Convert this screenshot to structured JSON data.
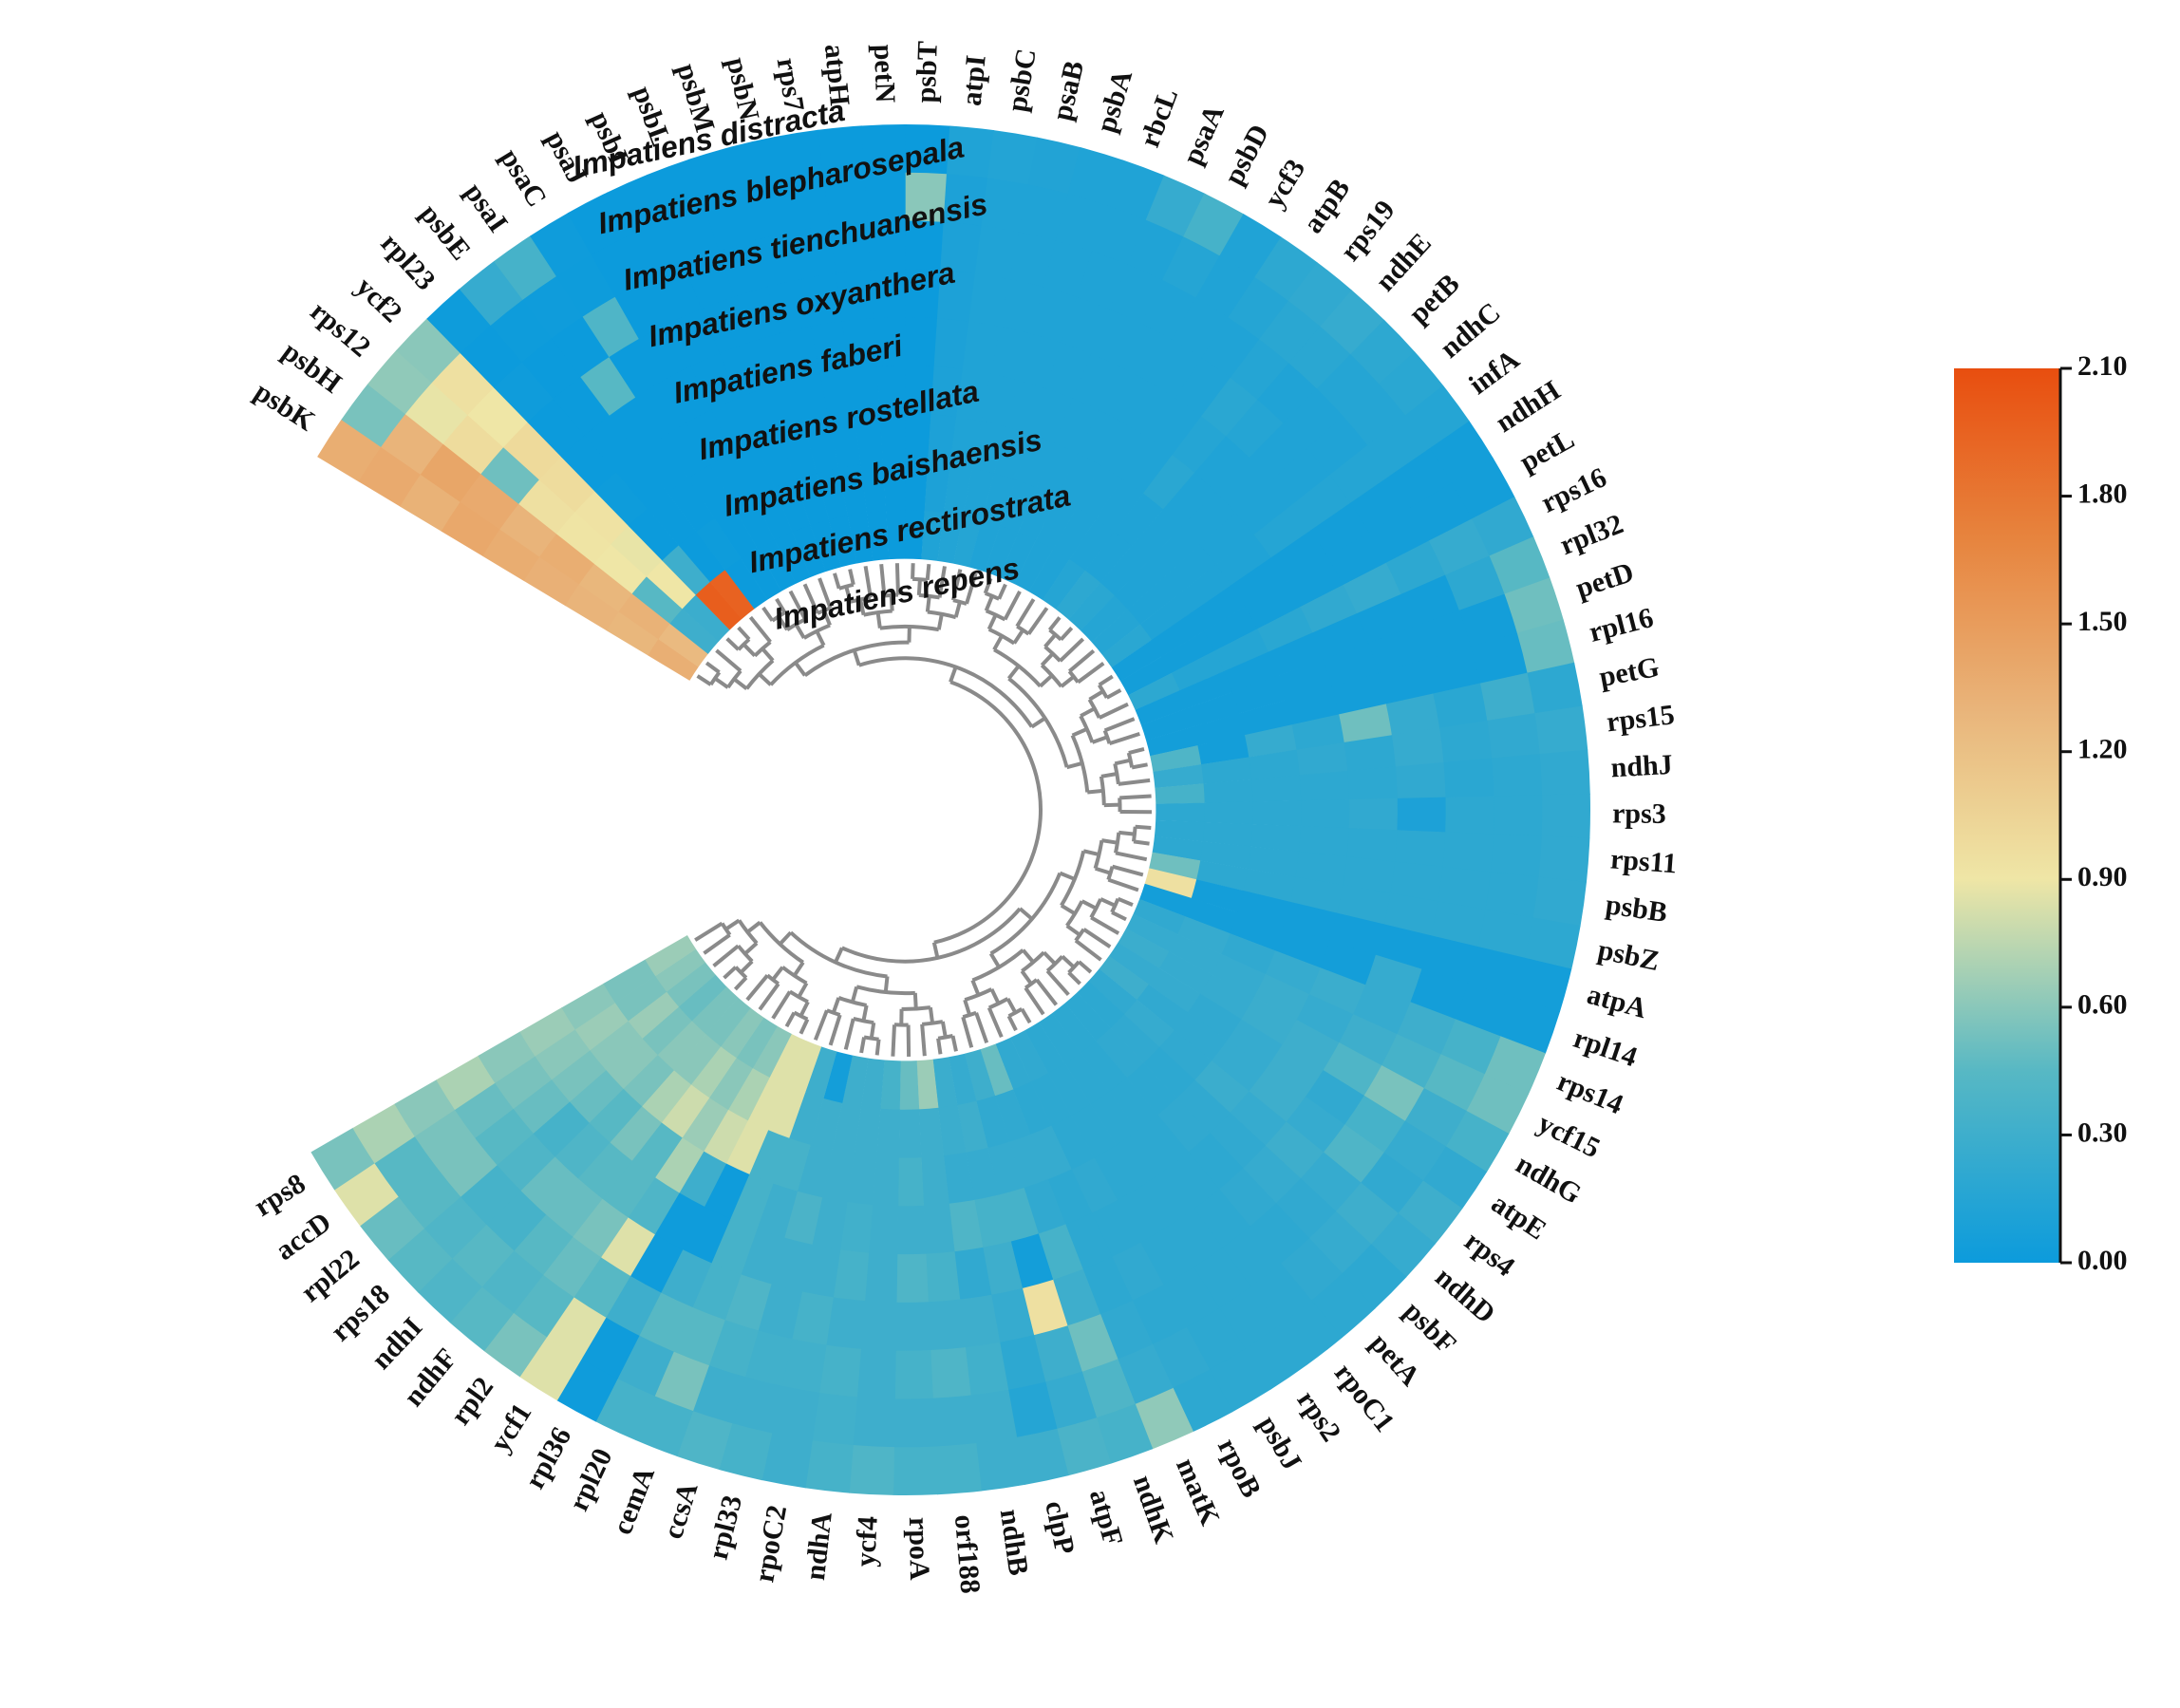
{
  "chart_data": {
    "type": "heatmap",
    "subtype": "circular heatmap with dendrogram",
    "title": "",
    "genes": [
      "psbK",
      "psbH",
      "rps12",
      "ycf2",
      "rpl23",
      "psbE",
      "psaI",
      "psaC",
      "psaJ",
      "psbI",
      "psbL",
      "psbM",
      "psbN",
      "rps7",
      "atpH",
      "petN",
      "psbT",
      "atpI",
      "psbC",
      "psaB",
      "psbA",
      "rbcL",
      "psaA",
      "psbD",
      "ycf3",
      "atpB",
      "rps19",
      "ndhE",
      "petB",
      "ndhC",
      "infA",
      "ndhH",
      "petL",
      "rps16",
      "rpl32",
      "petD",
      "rpl16",
      "petG",
      "rps15",
      "ndhJ",
      "rps3",
      "rps11",
      "psbB",
      "psbZ",
      "atpA",
      "rpl14",
      "rps14",
      "ycf15",
      "ndhG",
      "atpE",
      "rps4",
      "ndhD",
      "psbF",
      "petA",
      "rpoC1",
      "rps2",
      "psbJ",
      "rpoB",
      "matK",
      "ndhK",
      "atpF",
      "clpP",
      "ndhB",
      "orf188",
      "rpoA",
      "ycf4",
      "ndhA",
      "rpoC2",
      "rpl33",
      "ccsA",
      "cemA",
      "rpl20",
      "rpl36",
      "ycf1",
      "rpl2",
      "ndhF",
      "ndhI",
      "rps18",
      "rpl22",
      "accD",
      "rps8"
    ],
    "species": [
      "Impatiens distracta",
      "Impatiens blepharosepala",
      "Impatiens tienchuanensis",
      "Impatiens oxyanthera",
      "Impatiens faberi",
      "Impatiens rostellata",
      "Impatiens baishaensis",
      "Impatiens rectirostrata",
      "Impatiens repens"
    ],
    "values": [
      [
        1.35,
        1.38,
        1.32,
        1.4,
        1.36,
        1.33,
        1.3,
        1.28,
        1.34
      ],
      [
        0.55,
        1.3,
        1.42,
        1.38,
        1.3,
        1.35,
        1.28,
        1.32,
        1.25
      ],
      [
        0.62,
        0.88,
        0.98,
        0.52,
        0.95,
        0.92,
        0.9,
        0.45,
        0.3
      ],
      [
        0.6,
        0.95,
        0.9,
        1.0,
        0.98,
        0.93,
        0.88,
        0.9,
        0.28
      ],
      [
        0.01,
        0.0,
        0.02,
        0.0,
        0.0,
        0.01,
        0.0,
        0.3,
        1.98
      ],
      [
        0.25,
        0.01,
        0.0,
        0.0,
        0.0,
        0.0,
        0.0,
        0.0,
        1.95
      ],
      [
        0.35,
        0.02,
        0.0,
        0.45,
        0.0,
        0.0,
        0.0,
        0.01,
        0.0
      ],
      [
        0.02,
        0.01,
        0.4,
        0.0,
        0.0,
        0.0,
        0.0,
        0.0,
        0.0
      ],
      [
        0.0,
        0.0,
        0.0,
        0.0,
        0.0,
        0.0,
        0.0,
        0.0,
        0.0
      ],
      [
        0.0,
        0.0,
        0.0,
        0.0,
        0.0,
        0.0,
        0.0,
        0.0,
        0.0
      ],
      [
        0.0,
        0.0,
        0.0,
        0.0,
        0.0,
        0.0,
        0.0,
        0.0,
        0.0
      ],
      [
        0.0,
        0.0,
        0.0,
        0.0,
        0.0,
        0.0,
        0.0,
        0.0,
        0.0
      ],
      [
        0.0,
        0.0,
        0.0,
        0.0,
        0.0,
        0.0,
        0.0,
        0.0,
        0.0
      ],
      [
        0.0,
        0.0,
        0.0,
        0.0,
        0.0,
        0.0,
        0.0,
        0.0,
        0.0
      ],
      [
        0.0,
        0.0,
        0.0,
        0.0,
        0.0,
        0.0,
        0.0,
        0.0,
        0.0
      ],
      [
        0.0,
        0.0,
        0.0,
        0.0,
        0.0,
        0.0,
        0.0,
        0.0,
        0.0
      ],
      [
        0.0,
        0.6,
        0.0,
        0.0,
        0.0,
        0.0,
        0.0,
        0.0,
        0.0
      ],
      [
        0.12,
        0.1,
        0.1,
        0.1,
        0.1,
        0.1,
        0.1,
        0.1,
        0.12
      ],
      [
        0.14,
        0.12,
        0.12,
        0.12,
        0.12,
        0.12,
        0.12,
        0.12,
        0.14
      ],
      [
        0.13,
        0.12,
        0.12,
        0.12,
        0.12,
        0.12,
        0.12,
        0.12,
        0.15
      ],
      [
        0.12,
        0.12,
        0.12,
        0.12,
        0.12,
        0.12,
        0.12,
        0.12,
        0.12
      ],
      [
        0.12,
        0.12,
        0.12,
        0.12,
        0.12,
        0.12,
        0.12,
        0.12,
        0.12
      ],
      [
        0.25,
        0.12,
        0.12,
        0.12,
        0.12,
        0.12,
        0.12,
        0.12,
        0.12
      ],
      [
        0.35,
        0.15,
        0.12,
        0.12,
        0.12,
        0.12,
        0.12,
        0.12,
        0.12
      ],
      [
        0.12,
        0.12,
        0.12,
        0.12,
        0.12,
        0.12,
        0.12,
        0.12,
        0.12
      ],
      [
        0.2,
        0.15,
        0.12,
        0.12,
        0.12,
        0.12,
        0.12,
        0.12,
        0.15
      ],
      [
        0.22,
        0.18,
        0.15,
        0.18,
        0.15,
        0.18,
        0.12,
        0.12,
        0.2
      ],
      [
        0.25,
        0.18,
        0.12,
        0.15,
        0.12,
        0.12,
        0.12,
        0.12,
        0.18
      ],
      [
        0.2,
        0.15,
        0.12,
        0.12,
        0.12,
        0.12,
        0.12,
        0.12,
        0.15
      ],
      [
        0.18,
        0.15,
        0.12,
        0.12,
        0.12,
        0.12,
        0.12,
        0.12,
        0.15
      ],
      [
        0.15,
        0.15,
        0.15,
        0.15,
        0.15,
        0.12,
        0.12,
        0.12,
        0.18
      ],
      [
        0.05,
        0.05,
        0.05,
        0.05,
        0.05,
        0.05,
        0.05,
        0.05,
        0.05
      ],
      [
        0.05,
        0.05,
        0.05,
        0.05,
        0.05,
        0.05,
        0.05,
        0.05,
        0.05
      ],
      [
        0.22,
        0.25,
        0.2,
        0.25,
        0.22,
        0.18,
        0.15,
        0.15,
        0.2
      ],
      [
        0.45,
        0.2,
        0.05,
        0.05,
        0.05,
        0.05,
        0.05,
        0.05,
        0.05
      ],
      [
        0.52,
        0.05,
        0.05,
        0.05,
        0.05,
        0.05,
        0.05,
        0.05,
        0.05
      ],
      [
        0.5,
        0.05,
        0.05,
        0.05,
        0.05,
        0.05,
        0.05,
        0.05,
        0.05
      ],
      [
        0.2,
        0.3,
        0.18,
        0.25,
        0.52,
        0.2,
        0.25,
        0.05,
        0.4
      ],
      [
        0.25,
        0.22,
        0.2,
        0.25,
        0.2,
        0.22,
        0.2,
        0.2,
        0.25
      ],
      [
        0.22,
        0.2,
        0.18,
        0.22,
        0.2,
        0.2,
        0.2,
        0.2,
        0.35
      ],
      [
        0.22,
        0.2,
        0.2,
        0.1,
        0.22,
        0.2,
        0.2,
        0.2,
        0.2
      ],
      [
        0.22,
        0.2,
        0.2,
        0.2,
        0.2,
        0.2,
        0.2,
        0.2,
        0.2
      ],
      [
        0.22,
        0.2,
        0.2,
        0.2,
        0.2,
        0.2,
        0.2,
        0.2,
        0.2
      ],
      [
        0.2,
        0.2,
        0.2,
        0.2,
        0.2,
        0.2,
        0.2,
        0.2,
        0.52
      ],
      [
        0.05,
        0.05,
        0.05,
        0.05,
        0.05,
        0.05,
        0.05,
        0.05,
        0.95
      ],
      [
        0.05,
        0.05,
        0.05,
        0.25,
        0.05,
        0.05,
        0.05,
        0.05,
        0.05
      ],
      [
        0.52,
        0.35,
        0.3,
        0.25,
        0.28,
        0.25,
        0.22,
        0.25,
        0.22
      ],
      [
        0.52,
        0.45,
        0.35,
        0.3,
        0.25,
        0.28,
        0.25,
        0.25,
        0.25
      ],
      [
        0.35,
        0.3,
        0.55,
        0.4,
        0.3,
        0.28,
        0.25,
        0.25,
        0.28
      ],
      [
        0.22,
        0.25,
        0.35,
        0.22,
        0.3,
        0.25,
        0.22,
        0.25,
        0.25
      ],
      [
        0.3,
        0.22,
        0.4,
        0.25,
        0.3,
        0.25,
        0.22,
        0.22,
        0.3
      ],
      [
        0.25,
        0.3,
        0.25,
        0.3,
        0.25,
        0.28,
        0.22,
        0.25,
        0.22
      ],
      [
        0.2,
        0.25,
        0.22,
        0.25,
        0.22,
        0.22,
        0.2,
        0.22,
        0.2
      ],
      [
        0.2,
        0.22,
        0.2,
        0.22,
        0.2,
        0.22,
        0.2,
        0.22,
        0.2
      ],
      [
        0.2,
        0.2,
        0.2,
        0.2,
        0.2,
        0.2,
        0.2,
        0.2,
        0.2
      ],
      [
        0.2,
        0.2,
        0.2,
        0.2,
        0.2,
        0.2,
        0.2,
        0.2,
        0.2
      ],
      [
        0.2,
        0.2,
        0.2,
        0.2,
        0.2,
        0.2,
        0.2,
        0.2,
        0.2
      ],
      [
        0.2,
        0.22,
        0.2,
        0.22,
        0.2,
        0.22,
        0.2,
        0.2,
        0.22
      ],
      [
        0.62,
        0.25,
        0.22,
        0.2,
        0.2,
        0.2,
        0.25,
        0.2,
        0.22
      ],
      [
        0.35,
        0.4,
        0.52,
        0.3,
        0.35,
        0.22,
        0.25,
        0.22,
        0.5
      ],
      [
        0.38,
        0.25,
        0.3,
        0.95,
        0.05,
        0.35,
        0.25,
        0.22,
        0.3
      ],
      [
        0.3,
        0.15,
        0.2,
        0.25,
        0.3,
        0.35,
        0.25,
        0.3,
        0.25
      ],
      [
        0.3,
        0.3,
        0.32,
        0.3,
        0.22,
        0.4,
        0.25,
        0.28,
        0.28
      ],
      [
        0.35,
        0.3,
        0.4,
        0.3,
        0.35,
        0.3,
        0.3,
        0.3,
        0.65
      ],
      [
        0.35,
        0.3,
        0.35,
        0.3,
        0.4,
        0.3,
        0.35,
        0.3,
        0.5
      ],
      [
        0.4,
        0.3,
        0.3,
        0.3,
        0.3,
        0.3,
        0.3,
        0.3,
        0.35
      ],
      [
        0.35,
        0.32,
        0.35,
        0.3,
        0.35,
        0.32,
        0.3,
        0.3,
        0.3
      ],
      [
        0.3,
        0.3,
        0.32,
        0.35,
        0.3,
        0.3,
        0.3,
        0.3,
        0.3
      ],
      [
        0.35,
        0.3,
        0.32,
        0.3,
        0.3,
        0.38,
        0.3,
        0.3,
        0.05
      ],
      [
        0.4,
        0.3,
        0.35,
        0.4,
        0.3,
        0.3,
        0.35,
        0.3,
        0.3
      ],
      [
        0.35,
        0.55,
        0.45,
        0.35,
        0.35,
        0.35,
        0.35,
        0.85,
        0.85
      ],
      [
        0.35,
        0.3,
        0.45,
        0.3,
        0.02,
        0.02,
        0.85,
        0.85,
        0.85
      ],
      [
        0.02,
        0.02,
        0.3,
        0.02,
        0.02,
        0.3,
        0.8,
        0.7,
        0.6
      ],
      [
        0.85,
        0.85,
        0.45,
        0.85,
        0.4,
        0.7,
        0.65,
        0.6,
        0.55
      ],
      [
        0.55,
        0.45,
        0.5,
        0.55,
        0.45,
        0.45,
        0.8,
        0.7,
        0.6
      ],
      [
        0.45,
        0.4,
        0.45,
        0.5,
        0.45,
        0.55,
        0.7,
        0.6,
        0.55
      ],
      [
        0.4,
        0.45,
        0.35,
        0.5,
        0.4,
        0.45,
        0.55,
        0.6,
        0.55
      ],
      [
        0.45,
        0.4,
        0.35,
        0.4,
        0.35,
        0.5,
        0.6,
        0.55,
        0.5
      ],
      [
        0.5,
        0.45,
        0.55,
        0.45,
        0.5,
        0.55,
        0.6,
        0.65,
        0.55
      ],
      [
        0.85,
        0.45,
        0.55,
        0.5,
        0.55,
        0.6,
        0.65,
        0.55,
        0.6
      ],
      [
        0.55,
        0.7,
        0.6,
        0.7,
        0.6,
        0.65,
        0.6,
        0.55,
        0.65
      ]
    ],
    "colorbar": {
      "min": 0.0,
      "max": 2.1,
      "ticks": [
        "2.10",
        "1.80",
        "1.50",
        "1.20",
        "0.90",
        "0.60",
        "0.30",
        "0.00"
      ],
      "stops": [
        {
          "v": 0.0,
          "c": "#0C9BDC"
        },
        {
          "v": 0.45,
          "c": "#57B8C4"
        },
        {
          "v": 0.9,
          "c": "#EFE6A6"
        },
        {
          "v": 1.3,
          "c": "#E9B47A"
        },
        {
          "v": 1.7,
          "c": "#E7843E"
        },
        {
          "v": 2.1,
          "c": "#E84E0F"
        }
      ]
    }
  }
}
